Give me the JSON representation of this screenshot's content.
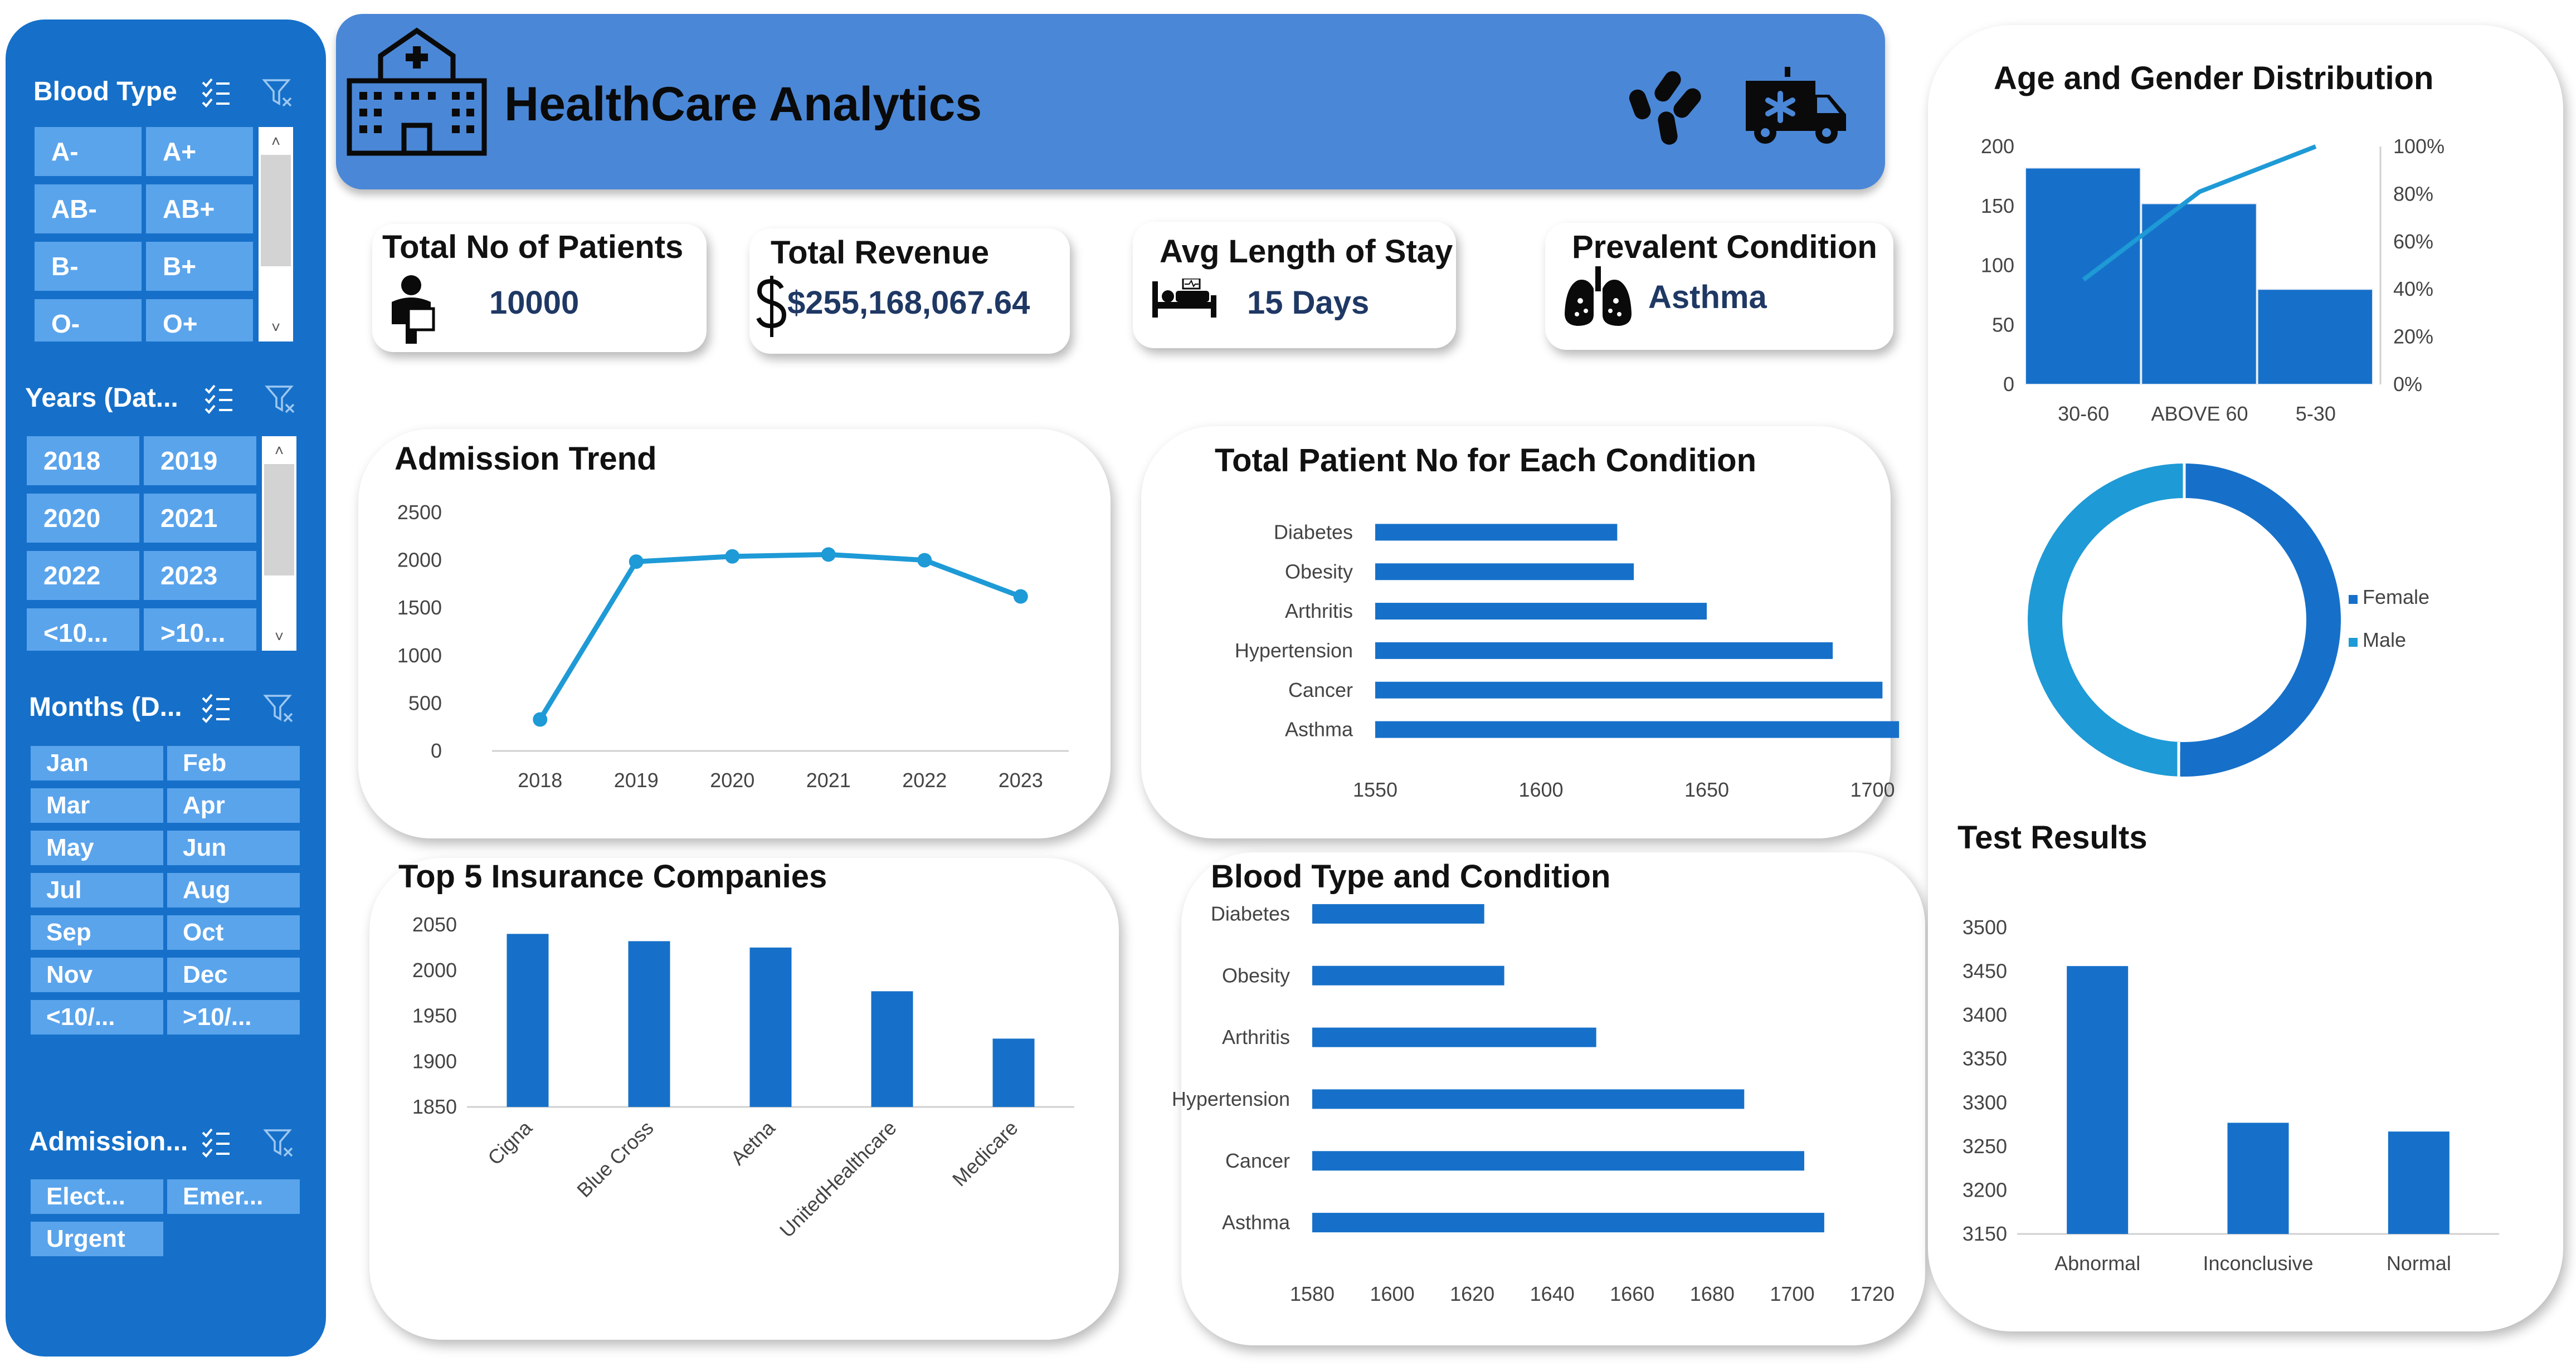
{
  "colors": {
    "sidebar": "#1670c9",
    "slicer_button": "#5aa4ec",
    "header": "#4a87d7",
    "bar": "#1670c9",
    "line": "#1e9ad6",
    "kpi_value": "#1f3864",
    "female": "#1670c9",
    "male": "#1e9ad6"
  },
  "sidebar": {
    "blood_type": {
      "title": "Blood Type",
      "items": [
        "A-",
        "A+",
        "AB-",
        "AB+",
        "B-",
        "B+",
        "O-",
        "O+"
      ]
    },
    "years": {
      "title": "Years (Dat...",
      "items": [
        "2018",
        "2019",
        "2020",
        "2021",
        "2022",
        "2023",
        "<10...",
        ">10..."
      ]
    },
    "months": {
      "title": "Months (D...",
      "items": [
        "Jan",
        "Feb",
        "Mar",
        "Apr",
        "May",
        "Jun",
        "Jul",
        "Aug",
        "Sep",
        "Oct",
        "Nov",
        "Dec",
        "<10/...",
        ">10/..."
      ]
    },
    "admission": {
      "title": "Admission...",
      "items": [
        "Elect...",
        "Emer...",
        "Urgent"
      ]
    },
    "icons": {
      "multi_select": "multi-select-icon",
      "clear_filter": "clear-filter-icon",
      "scroll_up": "˄",
      "scroll_down": "˅"
    }
  },
  "header": {
    "title": "HealthCare Analytics",
    "icons": [
      "hospital-icon",
      "bacteria-icon",
      "ambulance-icon"
    ]
  },
  "kpis": {
    "patients": {
      "label": "Total No of Patients",
      "value": "10000",
      "icon": "patient-icon"
    },
    "revenue": {
      "label": "Total Revenue",
      "value": "$255,168,067.64",
      "icon": "dollar-icon"
    },
    "stay": {
      "label": "Avg Length of Stay",
      "value": "15 Days",
      "icon": "hospital-bed-icon"
    },
    "condition": {
      "label": "Prevalent Condition",
      "value": "Asthma",
      "icon": "lungs-icon"
    }
  },
  "chart_data": [
    {
      "id": "admission_trend",
      "type": "line",
      "title": "Admission Trend",
      "x": [
        "2018",
        "2019",
        "2020",
        "2021",
        "2022",
        "2023"
      ],
      "values": [
        330,
        1985,
        2040,
        2060,
        2000,
        1620
      ],
      "ylim": [
        0,
        2500
      ],
      "yticks": [
        "0",
        "500",
        "1000",
        "1500",
        "2000",
        "2500"
      ],
      "grid": false
    },
    {
      "id": "patients_by_condition",
      "type": "bar",
      "orientation": "horizontal",
      "title": "Total Patient No for Each Condition",
      "categories": [
        "Diabetes",
        "Obesity",
        "Arthritis",
        "Hypertension",
        "Cancer",
        "Asthma"
      ],
      "values": [
        1623,
        1628,
        1650,
        1688,
        1703,
        1708
      ],
      "xlim": [
        1550,
        1750
      ],
      "xticks": [
        "1550",
        "1600",
        "1650",
        "1700",
        "1750"
      ]
    },
    {
      "id": "top_insurance",
      "type": "bar",
      "title": "Top 5 Insurance Companies",
      "categories": [
        "Cigna",
        "Blue Cross",
        "Aetna",
        "UnitedHealthcare",
        "Medicare"
      ],
      "values": [
        2040,
        2032,
        2025,
        1977,
        1925
      ],
      "ylim": [
        1850,
        2050
      ],
      "yticks": [
        "1850",
        "1900",
        "1950",
        "2000",
        "2050"
      ]
    },
    {
      "id": "blood_type_condition",
      "type": "bar",
      "orientation": "horizontal",
      "title": "Blood Type and Condition",
      "categories": [
        "Diabetes",
        "Obesity",
        "Arthritis",
        "Hypertension",
        "Cancer",
        "Asthma"
      ],
      "values": [
        1623,
        1628,
        1651,
        1688,
        1703,
        1708
      ],
      "xlim": [
        1580,
        1720
      ],
      "xticks": [
        "1580",
        "1600",
        "1620",
        "1640",
        "1660",
        "1680",
        "1700",
        "1720"
      ]
    },
    {
      "id": "age_gender",
      "type": "bar",
      "subtype": "pareto",
      "title": "Age and Gender Distribution",
      "categories": [
        "30-60",
        "ABOVE 60",
        "5-30"
      ],
      "values": [
        182,
        152,
        80
      ],
      "cumulative_percent": [
        44,
        81,
        100
      ],
      "ylim": [
        0,
        200
      ],
      "yticks": [
        "0",
        "50",
        "100",
        "150",
        "200"
      ],
      "y2ticks": [
        "0%",
        "20%",
        "40%",
        "60%",
        "80%",
        "100%"
      ]
    },
    {
      "id": "gender_split",
      "type": "pie",
      "subtype": "donut",
      "series": [
        {
          "name": "Female",
          "value": 50.5
        },
        {
          "name": "Male",
          "value": 49.5
        }
      ],
      "legend": "right"
    },
    {
      "id": "test_results",
      "type": "bar",
      "title": "Test Results",
      "categories": [
        "Abnormal",
        "Inconclusive",
        "Normal"
      ],
      "values": [
        3456,
        3277,
        3267
      ],
      "ylim": [
        3150,
        3500
      ],
      "yticks": [
        "3150",
        "3200",
        "3250",
        "3300",
        "3350",
        "3400",
        "3450",
        "3500"
      ]
    }
  ]
}
